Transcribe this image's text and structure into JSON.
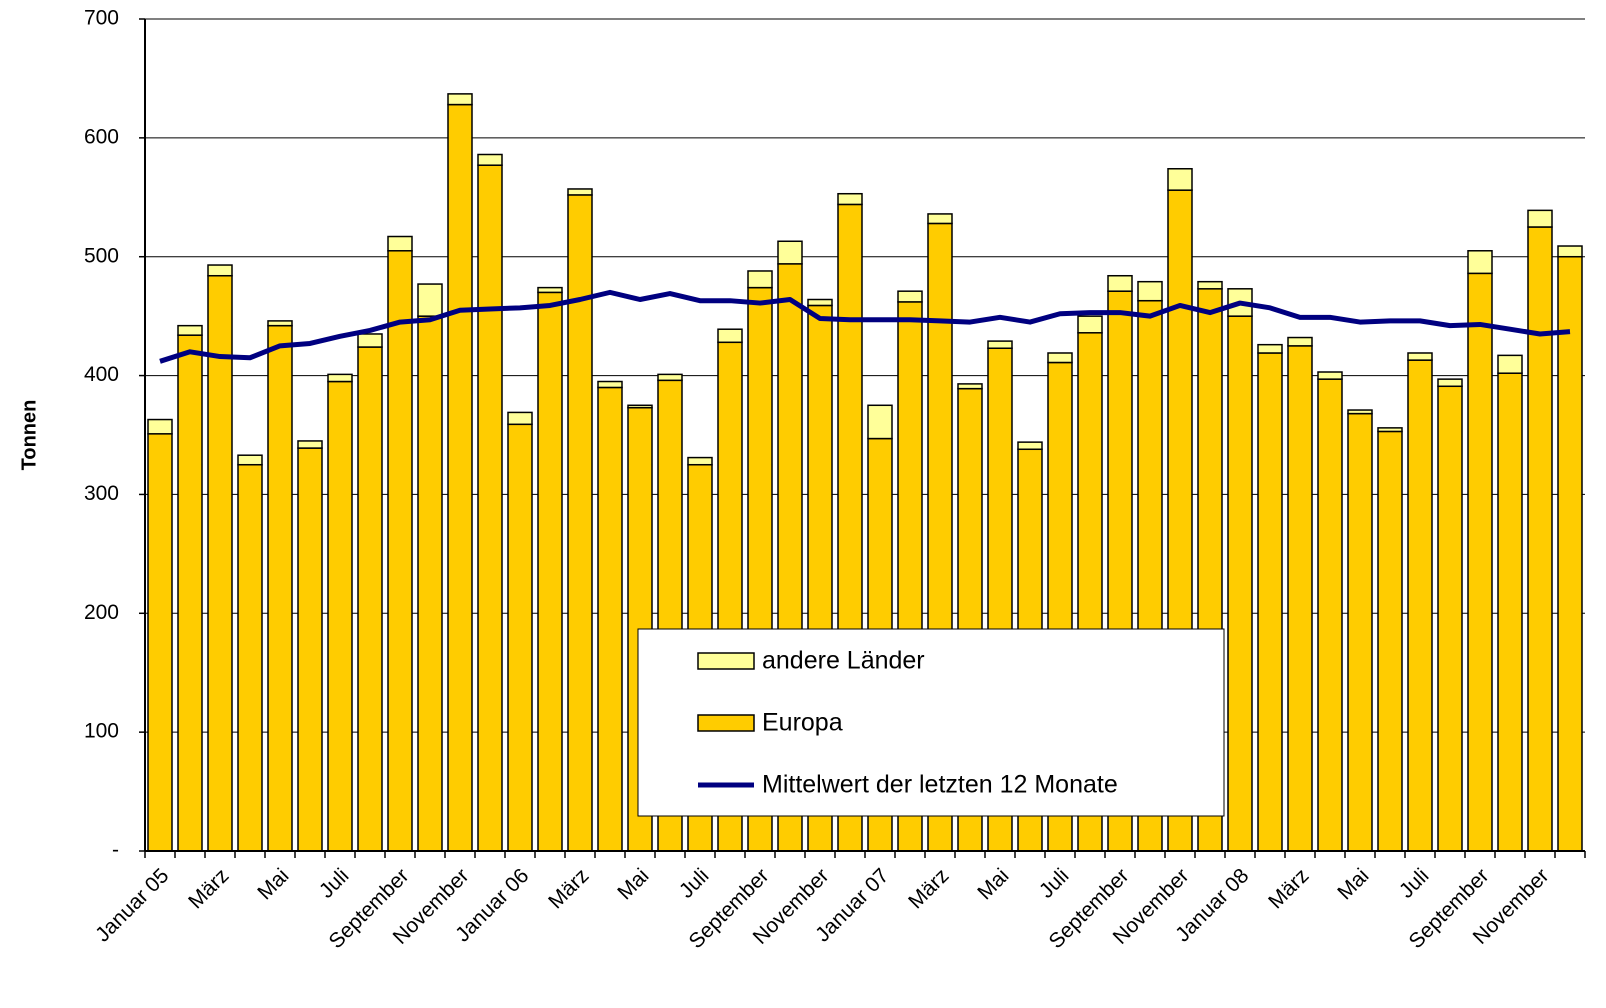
{
  "chart_data": {
    "type": "bar",
    "stacked": true,
    "y_label": "Tonnen",
    "categories": [
      "Januar 05",
      null,
      "März",
      null,
      "Mai",
      null,
      "Juli",
      null,
      "September",
      null,
      "November",
      null,
      "Januar 06",
      null,
      "März",
      null,
      "Mai",
      null,
      "Juli",
      null,
      "September",
      null,
      "November",
      null,
      "Januar 07",
      null,
      "März",
      null,
      "Mai",
      null,
      "Juli",
      null,
      "September",
      null,
      "November",
      null,
      "Januar 08",
      null,
      "März",
      null,
      "Mai",
      null,
      "Juli",
      null,
      "September",
      null,
      "November",
      null
    ],
    "series": [
      {
        "name": "Europa",
        "color": "#ffcc00",
        "values": [
          351,
          434,
          484,
          325,
          442,
          339,
          395,
          424,
          505,
          450,
          628,
          577,
          359,
          470,
          552,
          390,
          373,
          396,
          325,
          428,
          474,
          494,
          459,
          544,
          347,
          462,
          528,
          389,
          423,
          338,
          411,
          436,
          471,
          463,
          556,
          473,
          450,
          419,
          425,
          397,
          368,
          353,
          413,
          391,
          486,
          402,
          525,
          500
        ]
      },
      {
        "name": "andere Länder",
        "color": "#ffff99",
        "values": [
          12,
          8,
          9,
          8,
          4,
          6,
          6,
          11,
          12,
          27,
          9,
          9,
          10,
          4,
          5,
          5,
          2,
          5,
          6,
          11,
          14,
          19,
          5,
          9,
          28,
          9,
          8,
          4,
          6,
          6,
          8,
          14,
          13,
          16,
          18,
          6,
          23,
          7,
          7,
          6,
          3,
          3,
          6,
          6,
          19,
          15,
          14,
          9
        ]
      },
      {
        "name": "Mittelwert der letzten 12 Monate",
        "type": "line",
        "color": "#000080",
        "values": [
          412,
          420,
          416,
          415,
          425,
          427,
          433,
          438,
          445,
          447,
          455,
          456,
          457,
          459,
          464,
          470,
          464,
          469,
          463,
          463,
          461,
          464,
          448,
          447,
          447,
          447,
          446,
          445,
          449,
          445,
          452,
          453,
          453,
          450,
          459,
          453,
          461,
          457,
          449,
          449,
          445,
          446,
          446,
          442,
          443,
          439,
          435,
          437
        ]
      }
    ],
    "ylim": [
      0,
      700
    ],
    "yticks": [
      {
        "value": 0,
        "label": "-"
      },
      100,
      200,
      300,
      400,
      500,
      600,
      700
    ],
    "grid": true
  }
}
